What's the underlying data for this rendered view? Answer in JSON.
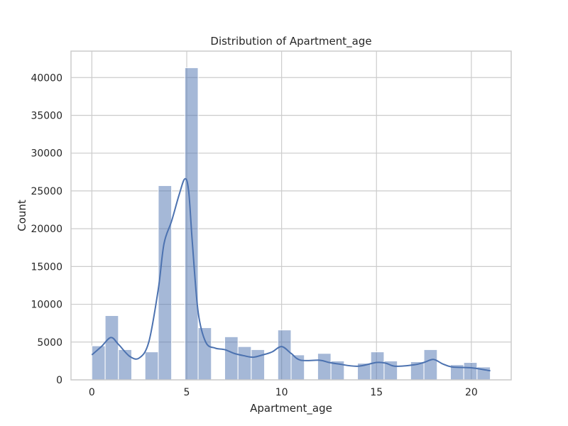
{
  "chart_data": {
    "type": "bar",
    "title": "Distribution of Apartment_age",
    "xlabel": "Apartment_age",
    "ylabel": "Count",
    "xlim": [
      -1.1,
      22.1
    ],
    "ylim": [
      0,
      43500
    ],
    "xticks": [
      0,
      5,
      10,
      15,
      20
    ],
    "yticks": [
      0,
      5000,
      10000,
      15000,
      20000,
      25000,
      30000,
      35000,
      40000
    ],
    "bin_width": 0.7,
    "bins": [
      {
        "x0": 0.0,
        "value": 4500
      },
      {
        "x0": 0.7,
        "value": 8500
      },
      {
        "x0": 1.4,
        "value": 4000
      },
      {
        "x0": 2.8,
        "value": 3700
      },
      {
        "x0": 3.5,
        "value": 25700
      },
      {
        "x0": 4.9,
        "value": 41300
      },
      {
        "x0": 5.6,
        "value": 6900
      },
      {
        "x0": 7.0,
        "value": 5700
      },
      {
        "x0": 7.7,
        "value": 4400
      },
      {
        "x0": 8.4,
        "value": 4000
      },
      {
        "x0": 9.8,
        "value": 6600
      },
      {
        "x0": 10.5,
        "value": 3300
      },
      {
        "x0": 11.9,
        "value": 3500
      },
      {
        "x0": 12.6,
        "value": 2500
      },
      {
        "x0": 14.0,
        "value": 2200
      },
      {
        "x0": 14.7,
        "value": 3700
      },
      {
        "x0": 15.4,
        "value": 2500
      },
      {
        "x0": 16.8,
        "value": 2400
      },
      {
        "x0": 17.5,
        "value": 4000
      },
      {
        "x0": 18.9,
        "value": 2000
      },
      {
        "x0": 19.6,
        "value": 2300
      },
      {
        "x0": 20.3,
        "value": 1700
      }
    ],
    "kde": {
      "x": [
        0,
        0.5,
        1.0,
        1.4,
        2.0,
        2.5,
        3.0,
        3.5,
        3.8,
        4.2,
        4.6,
        4.9,
        5.1,
        5.3,
        5.6,
        6.0,
        6.5,
        7.0,
        7.5,
        8.0,
        8.5,
        9.0,
        9.5,
        10.0,
        10.5,
        11.0,
        12.0,
        12.5,
        13.0,
        14.0,
        15.0,
        15.5,
        16.0,
        17.0,
        17.5,
        18.0,
        18.5,
        19.0,
        20.0,
        21.0
      ],
      "y": [
        3300,
        4400,
        5600,
        4700,
        3100,
        2900,
        5000,
        12000,
        18000,
        21000,
        24500,
        26600,
        25000,
        18000,
        9000,
        5000,
        4200,
        4000,
        3500,
        3200,
        3000,
        3300,
        3700,
        4400,
        3500,
        2600,
        2600,
        2300,
        2100,
        1800,
        2300,
        2200,
        1800,
        2000,
        2300,
        2700,
        2100,
        1700,
        1600,
        1200
      ]
    },
    "bar_color": "#4c72b0",
    "bar_opacity": 0.5,
    "line_color": "#4c72b0",
    "grid": true,
    "legend": "none"
  }
}
